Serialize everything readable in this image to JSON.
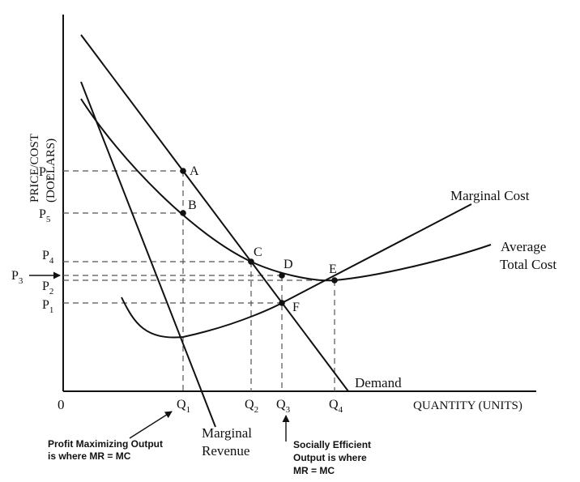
{
  "axes": {
    "y_label_line1": "PRICE/COST",
    "y_label_line2": "(DOLLARS)",
    "x_label": "QUANTITY (UNITS)",
    "origin": "0"
  },
  "price_levels": [
    {
      "base": "P",
      "sub": "6"
    },
    {
      "base": "P",
      "sub": "5"
    },
    {
      "base": "P",
      "sub": "4"
    },
    {
      "base": "P",
      "sub": "3"
    },
    {
      "base": "P",
      "sub": "2"
    },
    {
      "base": "P",
      "sub": "1"
    }
  ],
  "quantity_levels": [
    {
      "base": "Q",
      "sub": "1"
    },
    {
      "base": "Q",
      "sub": "2"
    },
    {
      "base": "Q",
      "sub": "3"
    },
    {
      "base": "Q",
      "sub": "4"
    }
  ],
  "points": [
    "A",
    "B",
    "C",
    "D",
    "E",
    "F"
  ],
  "curves": {
    "marginal_cost": "Marginal Cost",
    "average_total_cost_line1": "Average",
    "average_total_cost_line2": "Total Cost",
    "demand": "Demand",
    "marginal_revenue_line1": "Marginal",
    "marginal_revenue_line2": "Revenue"
  },
  "annotations": {
    "profit_line1": "Profit Maximizing Output",
    "profit_line2": "is where MR = MC",
    "social_line1": "Socially Efficient",
    "social_line2": "Output is where",
    "social_line3": "MR = MC"
  }
}
